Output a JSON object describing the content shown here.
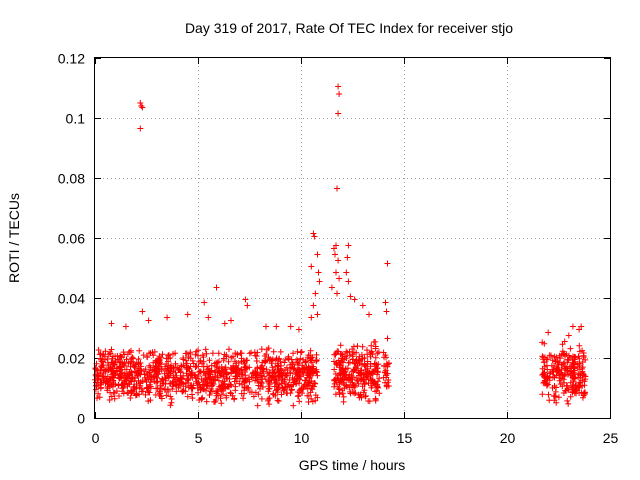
{
  "chart_data": {
    "type": "scatter",
    "title": "Day 319 of 2017, Rate Of TEC Index for receiver stjo",
    "xlabel": "GPS time / hours",
    "ylabel": "ROTI / TECUs",
    "xlim": [
      0,
      25
    ],
    "ylim": [
      0,
      0.12
    ],
    "x_ticks": [
      0,
      5,
      10,
      15,
      20,
      25
    ],
    "x_tick_labels": [
      "0",
      "5",
      "10",
      "15",
      "20",
      "25"
    ],
    "y_ticks": [
      0,
      0.02,
      0.04,
      0.06,
      0.08,
      0.1,
      0.12
    ],
    "y_tick_labels": [
      "0",
      "0.02",
      "0.04",
      "0.06",
      "0.08",
      "0.1",
      "0.12"
    ],
    "grid": true,
    "marker": "+",
    "color": "#ff0000",
    "series": [
      {
        "name": "ROTI",
        "bands": [
          {
            "x_start": 0.0,
            "x_end": 10.8,
            "y_min": 0.004,
            "y_max": 0.024,
            "count": 1100
          },
          {
            "x_start": 11.6,
            "x_end": 13.8,
            "y_min": 0.005,
            "y_max": 0.026,
            "count": 260
          },
          {
            "x_start": 14.0,
            "x_end": 14.3,
            "y_min": 0.007,
            "y_max": 0.025,
            "count": 25
          },
          {
            "x_start": 21.7,
            "x_end": 23.8,
            "y_min": 0.004,
            "y_max": 0.026,
            "count": 230
          }
        ],
        "points": [
          [
            2.2,
            0.105
          ],
          [
            2.25,
            0.104
          ],
          [
            2.3,
            0.1035
          ],
          [
            2.2,
            0.0965
          ],
          [
            2.3,
            0.0355
          ],
          [
            5.9,
            0.0435
          ],
          [
            5.3,
            0.0385
          ],
          [
            7.3,
            0.0395
          ],
          [
            7.4,
            0.0375
          ],
          [
            11.8,
            0.1105
          ],
          [
            11.85,
            0.108
          ],
          [
            11.8,
            0.1015
          ],
          [
            11.75,
            0.0765
          ],
          [
            10.6,
            0.0615
          ],
          [
            10.65,
            0.0605
          ],
          [
            10.5,
            0.0505
          ],
          [
            10.8,
            0.0545
          ],
          [
            10.85,
            0.0485
          ],
          [
            10.9,
            0.0455
          ],
          [
            11.6,
            0.0565
          ],
          [
            11.7,
            0.0575
          ],
          [
            11.65,
            0.0545
          ],
          [
            11.8,
            0.0525
          ],
          [
            11.7,
            0.0485
          ],
          [
            11.85,
            0.0465
          ],
          [
            12.3,
            0.0575
          ],
          [
            12.25,
            0.0535
          ],
          [
            12.2,
            0.0485
          ],
          [
            12.3,
            0.0455
          ],
          [
            12.4,
            0.0405
          ],
          [
            11.5,
            0.0435
          ],
          [
            11.75,
            0.0415
          ],
          [
            12.6,
            0.0395
          ],
          [
            13.0,
            0.0375
          ],
          [
            13.3,
            0.0345
          ],
          [
            10.7,
            0.0415
          ],
          [
            10.6,
            0.0375
          ],
          [
            10.8,
            0.0345
          ],
          [
            10.5,
            0.0335
          ],
          [
            14.2,
            0.0515
          ],
          [
            14.1,
            0.0385
          ],
          [
            14.15,
            0.0355
          ],
          [
            14.2,
            0.0265
          ],
          [
            4.5,
            0.0345
          ],
          [
            3.5,
            0.0335
          ],
          [
            6.6,
            0.0325
          ],
          [
            8.3,
            0.0305
          ],
          [
            9.5,
            0.0305
          ],
          [
            9.9,
            0.0295
          ],
          [
            0.8,
            0.0315
          ],
          [
            1.5,
            0.0305
          ],
          [
            2.6,
            0.0325
          ],
          [
            5.5,
            0.0335
          ],
          [
            6.3,
            0.0315
          ],
          [
            8.8,
            0.0305
          ],
          [
            22.0,
            0.0285
          ],
          [
            23.2,
            0.0305
          ],
          [
            23.5,
            0.0295
          ],
          [
            23.6,
            0.0305
          ],
          [
            22.8,
            0.0255
          ],
          [
            23.0,
            0.0275
          ]
        ]
      }
    ]
  }
}
